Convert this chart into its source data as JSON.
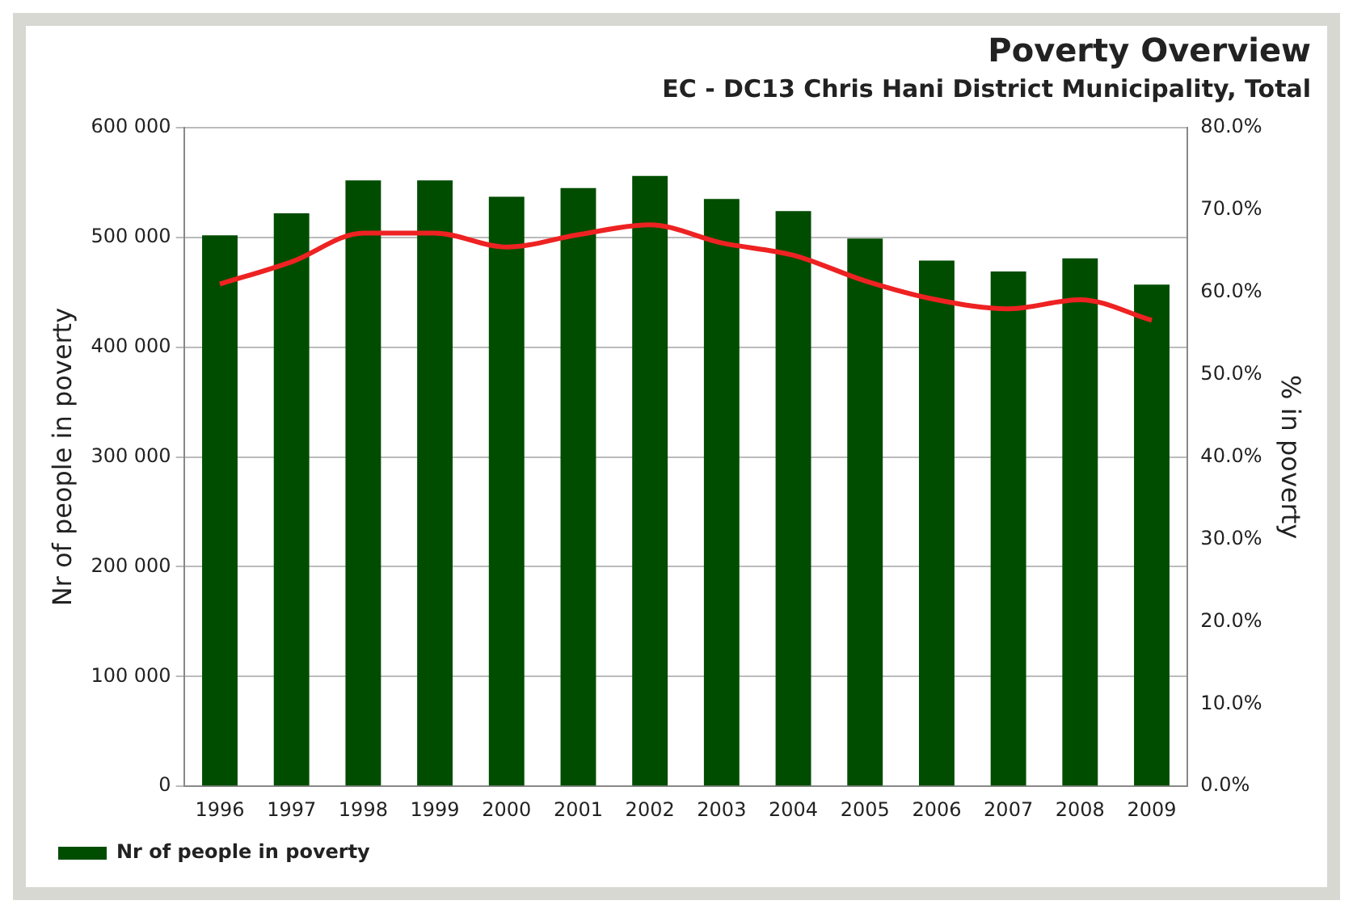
{
  "chart_data": {
    "type": "bar",
    "title": "Poverty Overview",
    "subtitle": "EC - DC13 Chris Hani District Municipality, Total",
    "ylabel": "Nr of people in poverty",
    "y2label": "% in poverty",
    "categories": [
      "1996",
      "1997",
      "1998",
      "1999",
      "2000",
      "2001",
      "2002",
      "2003",
      "2004",
      "2005",
      "2006",
      "2007",
      "2008",
      "2009"
    ],
    "series": [
      {
        "name": "Nr of people in poverty",
        "color": "#004d00",
        "values": [
          502000,
          522000,
          552000,
          552000,
          537000,
          545000,
          556000,
          535000,
          524000,
          499000,
          479000,
          469000,
          481000,
          457000
        ]
      },
      {
        "type": "line",
        "axis": "y2",
        "color": "#ee2222",
        "values": [
          61.0,
          63.7,
          67.2,
          67.2,
          65.5,
          67.0,
          68.2,
          66.0,
          64.5,
          61.4,
          59.1,
          58.0,
          59.1,
          56.6
        ]
      }
    ],
    "ylim": [
      0,
      600000
    ],
    "yticks": [
      {
        "value": 0,
        "label": "0"
      },
      {
        "value": 100000,
        "label": "100 000"
      },
      {
        "value": 200000,
        "label": "200 000"
      },
      {
        "value": 300000,
        "label": "300 000"
      },
      {
        "value": 400000,
        "label": "400 000"
      },
      {
        "value": 500000,
        "label": "500 000"
      },
      {
        "value": 600000,
        "label": "600 000"
      }
    ],
    "y2lim": [
      0,
      80
    ],
    "y2ticks": [
      {
        "value": 0,
        "label": "0.0%"
      },
      {
        "value": 10,
        "label": "10.0%"
      },
      {
        "value": 20,
        "label": "20.0%"
      },
      {
        "value": 30,
        "label": "30.0%"
      },
      {
        "value": 40,
        "label": "40.0%"
      },
      {
        "value": 50,
        "label": "50.0%"
      },
      {
        "value": 60,
        "label": "60.0%"
      },
      {
        "value": 70,
        "label": "70.0%"
      },
      {
        "value": 80,
        "label": "80.0%"
      }
    ],
    "grid": "y",
    "legend": "bottom left",
    "marker": "none",
    "line_style": "solid"
  }
}
